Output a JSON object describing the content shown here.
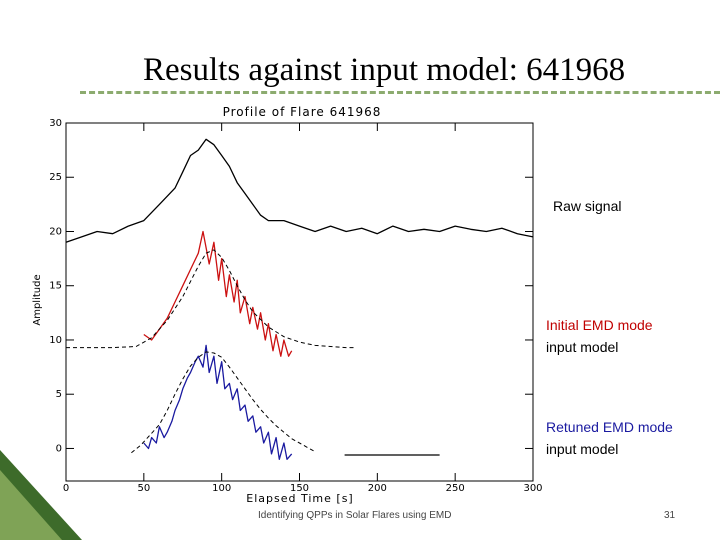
{
  "slide": {
    "title": "Results against input model: 641968",
    "footer": "Identifying QPPs in Solar Flares using EMD",
    "page_number": "31"
  },
  "annotations": {
    "raw": "Raw signal",
    "initial_line1": "Initial EMD mode",
    "initial_line2": "input model",
    "retuned_line1": "Retuned EMD mode",
    "retuned_line2": "input model"
  },
  "colors": {
    "accent": "#8cab6f",
    "corner_dark": "#3d6b2a",
    "corner_light": "#7fa356",
    "raw_signal": "#000000",
    "initial_mode": "#cc1111",
    "retuned_mode": "#1a1aa0"
  },
  "chart_data": {
    "type": "line",
    "title": "Profile of Flare 641968",
    "xlabel": "Elapsed Time [s]",
    "ylabel": "Amplitude",
    "xlim": [
      0,
      300
    ],
    "ylim": [
      -3,
      30
    ],
    "xticks": [
      0,
      50,
      100,
      150,
      200,
      250,
      300
    ],
    "yticks": [
      0,
      5,
      10,
      15,
      20,
      25,
      30
    ],
    "grid": false,
    "series": [
      {
        "name": "Raw signal",
        "color": "#000000",
        "x": [
          0,
          10,
          20,
          30,
          40,
          50,
          60,
          70,
          75,
          80,
          85,
          90,
          95,
          100,
          105,
          110,
          115,
          120,
          125,
          130,
          140,
          150,
          160,
          170,
          180,
          190,
          200,
          210,
          220,
          230,
          240,
          250,
          260,
          270,
          280,
          290,
          300
        ],
        "y": [
          19,
          19.5,
          20,
          19.8,
          20.5,
          21,
          22.5,
          24,
          25.5,
          27,
          27.5,
          28.5,
          28,
          27,
          26,
          24.5,
          23.5,
          22.5,
          21.5,
          21,
          21,
          20.5,
          20,
          20.5,
          20,
          20.3,
          19.8,
          20.5,
          20,
          20.2,
          20,
          20.5,
          20.2,
          20,
          20.3,
          19.8,
          19.5
        ]
      },
      {
        "name": "Initial EMD mode",
        "color": "#cc1111",
        "x": [
          50,
          55,
          60,
          65,
          70,
          75,
          80,
          85,
          88,
          90,
          92,
          95,
          98,
          100,
          103,
          105,
          108,
          110,
          112,
          115,
          118,
          120,
          123,
          125,
          128,
          130,
          133,
          135,
          138,
          140,
          143,
          145
        ],
        "y": [
          10.5,
          10,
          11,
          12,
          13.5,
          15,
          16.5,
          18,
          20,
          18.5,
          17,
          19,
          15.5,
          17.5,
          14,
          16,
          13.5,
          15.5,
          12.5,
          14,
          11.5,
          13,
          11,
          12.5,
          10,
          11.5,
          9,
          10.5,
          8.5,
          10,
          8.5,
          9
        ]
      },
      {
        "name": "Initial input model",
        "color": "#000000",
        "dashed": true,
        "x": [
          0,
          30,
          45,
          55,
          65,
          75,
          85,
          90,
          95,
          100,
          105,
          110,
          115,
          120,
          125,
          130,
          140,
          150,
          160,
          170,
          180,
          185
        ],
        "y": [
          9.3,
          9.3,
          9.4,
          10.2,
          11.8,
          14,
          16.8,
          18,
          18.3,
          17.6,
          16.4,
          15,
          13.7,
          12.6,
          11.9,
          11.2,
          10.3,
          9.8,
          9.5,
          9.4,
          9.3,
          9.3
        ]
      },
      {
        "name": "Retuned EMD mode",
        "color": "#1a1aa0",
        "x": [
          50,
          53,
          55,
          58,
          60,
          63,
          65,
          68,
          70,
          73,
          75,
          78,
          80,
          83,
          85,
          88,
          90,
          92,
          95,
          97,
          100,
          102,
          105,
          107,
          110,
          112,
          115,
          117,
          120,
          122,
          125,
          127,
          130,
          132,
          135,
          137,
          140,
          142,
          145
        ],
        "y": [
          0.5,
          0,
          1,
          0.5,
          2,
          1,
          1.5,
          2.5,
          3.5,
          4.5,
          5.5,
          6.5,
          7,
          8,
          8.5,
          7.5,
          9.5,
          7,
          8.5,
          6,
          8,
          5.5,
          6,
          4.5,
          5.5,
          3.5,
          4,
          2.5,
          3,
          1.5,
          2,
          0.5,
          1.5,
          -0.5,
          1,
          -1,
          0.5,
          -1,
          -0.5
        ]
      },
      {
        "name": "Retuned input model",
        "color": "#000000",
        "dashed": true,
        "x": [
          42,
          48,
          55,
          60,
          65,
          70,
          75,
          80,
          85,
          90,
          95,
          100,
          105,
          110,
          115,
          120,
          125,
          130,
          135,
          140,
          145,
          150,
          155,
          160
        ],
        "y": [
          -0.4,
          0.3,
          1.4,
          2.2,
          3.5,
          5,
          6.4,
          7.6,
          8.4,
          8.9,
          8.8,
          8.4,
          7.5,
          6.5,
          5.5,
          4.5,
          3.6,
          2.8,
          2.1,
          1.5,
          0.9,
          0.5,
          0.1,
          -0.3
        ]
      },
      {
        "name": "Baseline",
        "color": "#000000",
        "x": [
          179,
          240
        ],
        "y": [
          -0.6,
          -0.6
        ]
      }
    ]
  }
}
